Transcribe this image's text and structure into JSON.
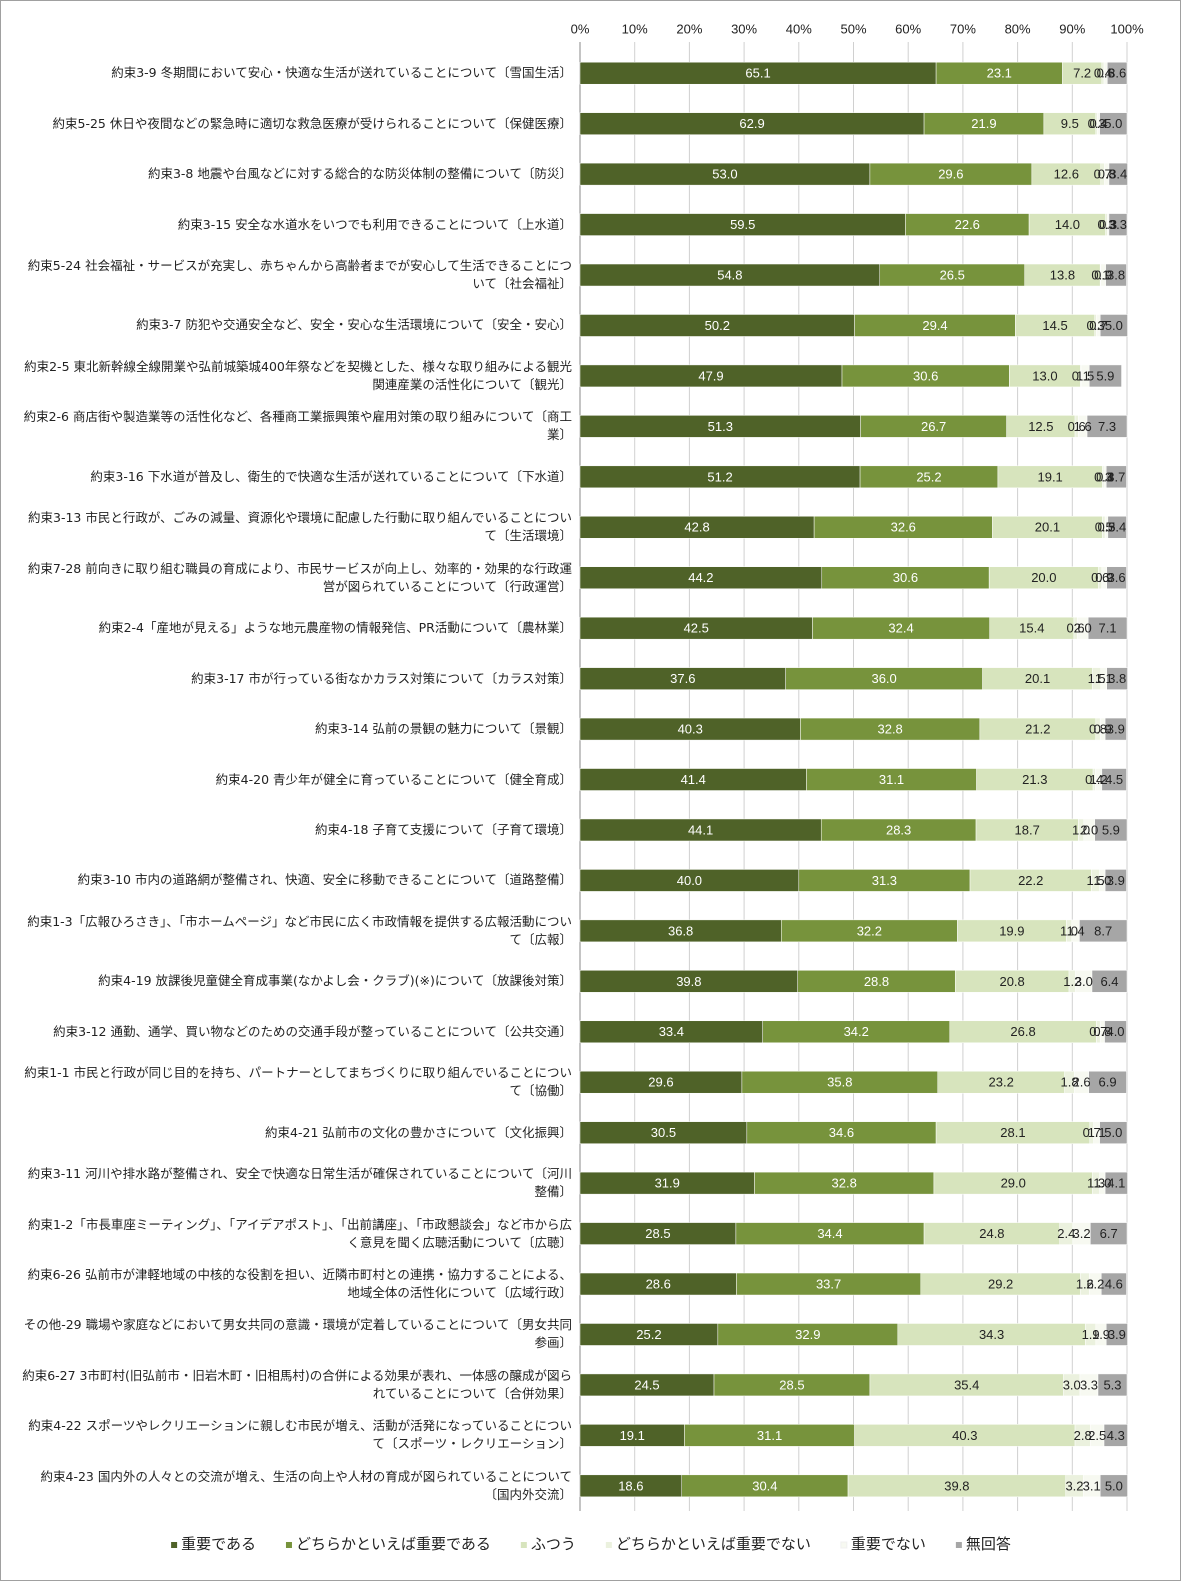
{
  "chart_data": {
    "type": "stacked-bar-horizontal",
    "categories": [
      "約束3-9 冬期間において安心・快適な生活が送れていることについて〔雪国生活〕",
      "約束5-25 休日や夜間などの緊急時に適切な救急医療が受けられることについて〔保健医療〕",
      "約束3-8 地震や台風などに対する総合的な防災体制の整備について〔防災〕",
      "約束3-15 安全な水道水をいつでも利用できることについて〔上水道〕",
      "約束5-24 社会福祉・サービスが充実し、赤ちゃんから高齢者までが安心して生活できることについて〔社会福祉〕",
      "約束3-7 防犯や交通安全など、安全・安心な生活環境について〔安全・安心〕",
      "約束2-5 東北新幹線全線開業や弘前城築城400年祭などを契機とした、様々な取り組みによる観光関連産業の活性化について〔観光〕",
      "約束2-6 商店街や製造業等の活性化など、各種商工業振興策や雇用対策の取り組みについて〔商工業〕",
      "約束3-16 下水道が普及し、衛生的で快適な生活が送れていることについて〔下水道〕",
      "約束3-13 市民と行政が、ごみの減量、資源化や環境に配慮した行動に取り組んでいることについて〔生活環境〕",
      "約束7-28 前向きに取り組む職員の育成により、市民サービスが向上し、効率的・効果的な行政運営が図られていることについて〔行政運営〕",
      "約束2-4「産地が見える」ような地元農産物の情報発信、PR活動について〔農林業〕",
      "約束3-17 市が行っている街なかカラス対策について〔カラス対策〕",
      "約束3-14 弘前の景観の魅力について〔景観〕",
      "約束4-20 青少年が健全に育っていることについて〔健全育成〕",
      "約束4-18 子育て支援について〔子育て環境〕",
      "約束3-10 市内の道路網が整備され、快適、安全に移動できることについて〔道路整備〕",
      "約束1-3「広報ひろさき」、「市ホームページ」など市民に広く市政情報を提供する広報活動について〔広報〕",
      "約束4-19 放課後児童健全育成事業(なかよし会・クラブ)(※)について〔放課後対策〕",
      "約束3-12 通勤、通学、買い物などのための交通手段が整っていることについて〔公共交通〕",
      "約束1-1 市民と行政が同じ目的を持ち、パートナーとしてまちづくりに取り組んでいることについて〔協働〕",
      "約束4-21 弘前市の文化の豊かさについて〔文化振興〕",
      "約束3-11 河川や排水路が整備され、安全で快適な日常生活が確保されていることについて〔河川整備〕",
      "約束1-2「市長車座ミーティング」、「アイデアポスト」、「出前講座」、「市政懇談会」など市から広く意見を聞く広聴活動について〔広聴〕",
      "約束6-26 弘前市が津軽地域の中核的な役割を担い、近隣市町村との連携・協力することによる、地域全体の活性化について〔広域行政〕",
      "その他-29 職場や家庭などにおいて男女共同の意識・環境が定着していることについて〔男女共同参画〕",
      "約束6-27 3市町村(旧弘前市・旧岩木町・旧相馬村)の合併による効果が表れ、一体感の醸成が図られていることについて〔合併効果〕",
      "約束4-22 スポーツやレクリエーションに親しむ市民が増え、活動が活発になっていることについて〔スポーツ・レクリエーション〕",
      "約束4-23 国内外の人々との交流が増え、生活の向上や人材の育成が図られていることについて〔国内外交流〕"
    ],
    "series": [
      {
        "name": "重要である",
        "color": "#4f6228",
        "label_color": "#ffffff",
        "values": [
          65.1,
          62.9,
          53.0,
          59.5,
          54.8,
          50.2,
          47.9,
          51.3,
          51.2,
          42.8,
          44.2,
          42.5,
          37.6,
          40.3,
          41.4,
          44.1,
          40.0,
          36.8,
          39.8,
          33.4,
          29.6,
          30.5,
          31.9,
          28.5,
          28.6,
          25.2,
          24.5,
          19.1,
          18.6
        ],
        "value_labels": [
          "65.1",
          "62.9",
          "53.0",
          "59.5",
          "54.8",
          "50.2",
          "47.9",
          "51.3",
          "51.2",
          "42.8",
          "44.2",
          "42.5",
          "37.6",
          "40.3",
          "41.4",
          "44.1",
          "40.0",
          "36.8",
          "39.8",
          "33.4",
          "29.6",
          "30.5",
          "31.9",
          "28.5",
          "28.6",
          "25.2",
          "24.5",
          "19.1",
          "18.6"
        ]
      },
      {
        "name": "どちらかといえば重要である",
        "color": "#77933c",
        "label_color": "#ffffff",
        "values": [
          23.1,
          21.9,
          29.6,
          22.6,
          26.5,
          29.4,
          30.6,
          26.7,
          25.2,
          32.6,
          30.6,
          32.4,
          36.0,
          32.8,
          31.1,
          28.3,
          31.3,
          32.2,
          28.8,
          34.2,
          35.8,
          34.6,
          32.8,
          34.4,
          33.7,
          32.9,
          28.5,
          31.1,
          30.4
        ],
        "value_labels": [
          "23.1",
          "21.9",
          "29.6",
          "22.6",
          "26.5",
          "29.4",
          "30.6",
          "26.7",
          "25.2",
          "32.6",
          "30.6",
          "32.4",
          "36.0",
          "32.8",
          "31.1",
          "28.3",
          "31.3",
          "32.2",
          "28.8",
          "34.2",
          "35.8",
          "34.6",
          "32.8",
          "34.4",
          "33.7",
          "32.9",
          "28.5",
          "31.1",
          "30.4"
        ]
      },
      {
        "name": "ふつう",
        "color": "#d7e4bd",
        "label_color": "#222222",
        "values": [
          7.2,
          9.5,
          12.6,
          14.0,
          13.8,
          14.5,
          13.0,
          12.5,
          19.1,
          20.1,
          20.0,
          15.4,
          20.1,
          21.2,
          21.3,
          18.7,
          22.2,
          19.9,
          20.8,
          26.8,
          23.2,
          28.1,
          29.0,
          24.8,
          29.2,
          34.3,
          35.4,
          40.3,
          39.8
        ],
        "value_labels": [
          "7.2",
          "9.5",
          "12.6",
          "14.0",
          "13.8",
          "14.5",
          "13.0",
          "12.5",
          "19.1",
          "20.1",
          "20.0",
          "15.4",
          "20.1",
          "21.2",
          "21.3",
          "18.7",
          "22.2",
          "19.9",
          "20.8",
          "26.8",
          "23.2",
          "28.1",
          "29.0",
          "24.8",
          "29.2",
          "34.3",
          "35.4",
          "40.3",
          "39.8"
        ]
      },
      {
        "name": "どちらかといえば重要でない",
        "color": "#ebf1de",
        "label_color": "#222222",
        "values": [
          0.4,
          0.3,
          0.7,
          0.3,
          0.1,
          0.3,
          0.1,
          0.6,
          0.3,
          0.5,
          0.6,
          0.6,
          1.5,
          0.8,
          0.4,
          1.0,
          1.5,
          1.0,
          1.2,
          0.7,
          1.8,
          0.7,
          1.3,
          2.4,
          1.6,
          1.9,
          3.0,
          2.8,
          3.2
        ],
        "value_labels": [
          "0.4",
          "0.3",
          "0.7",
          "0.3",
          "0.1",
          "0.3",
          "0.1",
          "0.6",
          "0.3",
          "0.5",
          "0.6",
          "0.6",
          "1.5",
          "0.8",
          "0.4",
          "1.0",
          "1.5",
          "1.0",
          "1.2",
          "0.7",
          "1.8",
          "0.7",
          "1.3",
          "2.4",
          "1.6",
          "1.9",
          "3.0",
          "2.8",
          "3.2"
        ]
      },
      {
        "name": "重要でない",
        "color": "#f7f9f1",
        "label_color": "#222222",
        "values": [
          0.6,
          0.4,
          0.8,
          0.3,
          0.9,
          0.7,
          1.5,
          1.6,
          0.4,
          0.5,
          0.9,
          2.0,
          1.1,
          0.9,
          1.2,
          2.0,
          1.0,
          1.4,
          3.0,
          0.8,
          2.6,
          1.1,
          1.0,
          3.2,
          2.2,
          1.9,
          3.3,
          2.5,
          3.1
        ],
        "value_labels": [
          "0.6",
          "0.4",
          "0.8",
          "0.3",
          "0.9",
          "0.7",
          "1.5",
          "1.6",
          "0.4",
          "0.5",
          "0.9",
          "2.0",
          "1.1",
          "0.9",
          "1.2",
          "2.0",
          "1.0",
          "1.4",
          "3.0",
          "0.8",
          "2.6",
          "1.1",
          "1.0",
          "3.2",
          "2.2",
          "1.9",
          "3.3",
          "2.5",
          "3.1"
        ]
      },
      {
        "name": "無回答",
        "color": "#a6a6a6",
        "label_color": "#222222",
        "values": [
          3.6,
          5.0,
          3.4,
          3.3,
          3.8,
          5.0,
          5.9,
          7.3,
          3.7,
          3.4,
          3.6,
          7.1,
          3.8,
          3.9,
          4.5,
          5.9,
          3.9,
          8.7,
          6.4,
          4.0,
          6.9,
          5.0,
          4.1,
          6.7,
          4.6,
          3.9,
          5.3,
          4.3,
          5.0
        ],
        "value_labels": [
          "3.6",
          "5.0",
          "3.4",
          "3.3",
          "3.8",
          "5.0",
          "5.9",
          "7.3",
          "3.7",
          "3.4",
          "3.6",
          "7.1",
          "3.8",
          "3.9",
          "4.5",
          "5.9",
          "3.9",
          "8.7",
          "6.4",
          "4.0",
          "6.9",
          "5.0",
          "4.1",
          "6.7",
          "4.6",
          "3.9",
          "5.3",
          "4.3",
          "5.0"
        ]
      }
    ],
    "xlim": [
      0,
      100
    ],
    "xticks": [
      {
        "value": 0,
        "label": "0%"
      },
      {
        "value": 10,
        "label": "10%"
      },
      {
        "value": 20,
        "label": "20%"
      },
      {
        "value": 30,
        "label": "30%"
      },
      {
        "value": 40,
        "label": "40%"
      },
      {
        "value": 50,
        "label": "50%"
      },
      {
        "value": 60,
        "label": "60%"
      },
      {
        "value": 70,
        "label": "70%"
      },
      {
        "value": 80,
        "label": "80%"
      },
      {
        "value": 90,
        "label": "90%"
      },
      {
        "value": 100,
        "label": "100%"
      }
    ],
    "grid": true,
    "legend": "bottom"
  }
}
